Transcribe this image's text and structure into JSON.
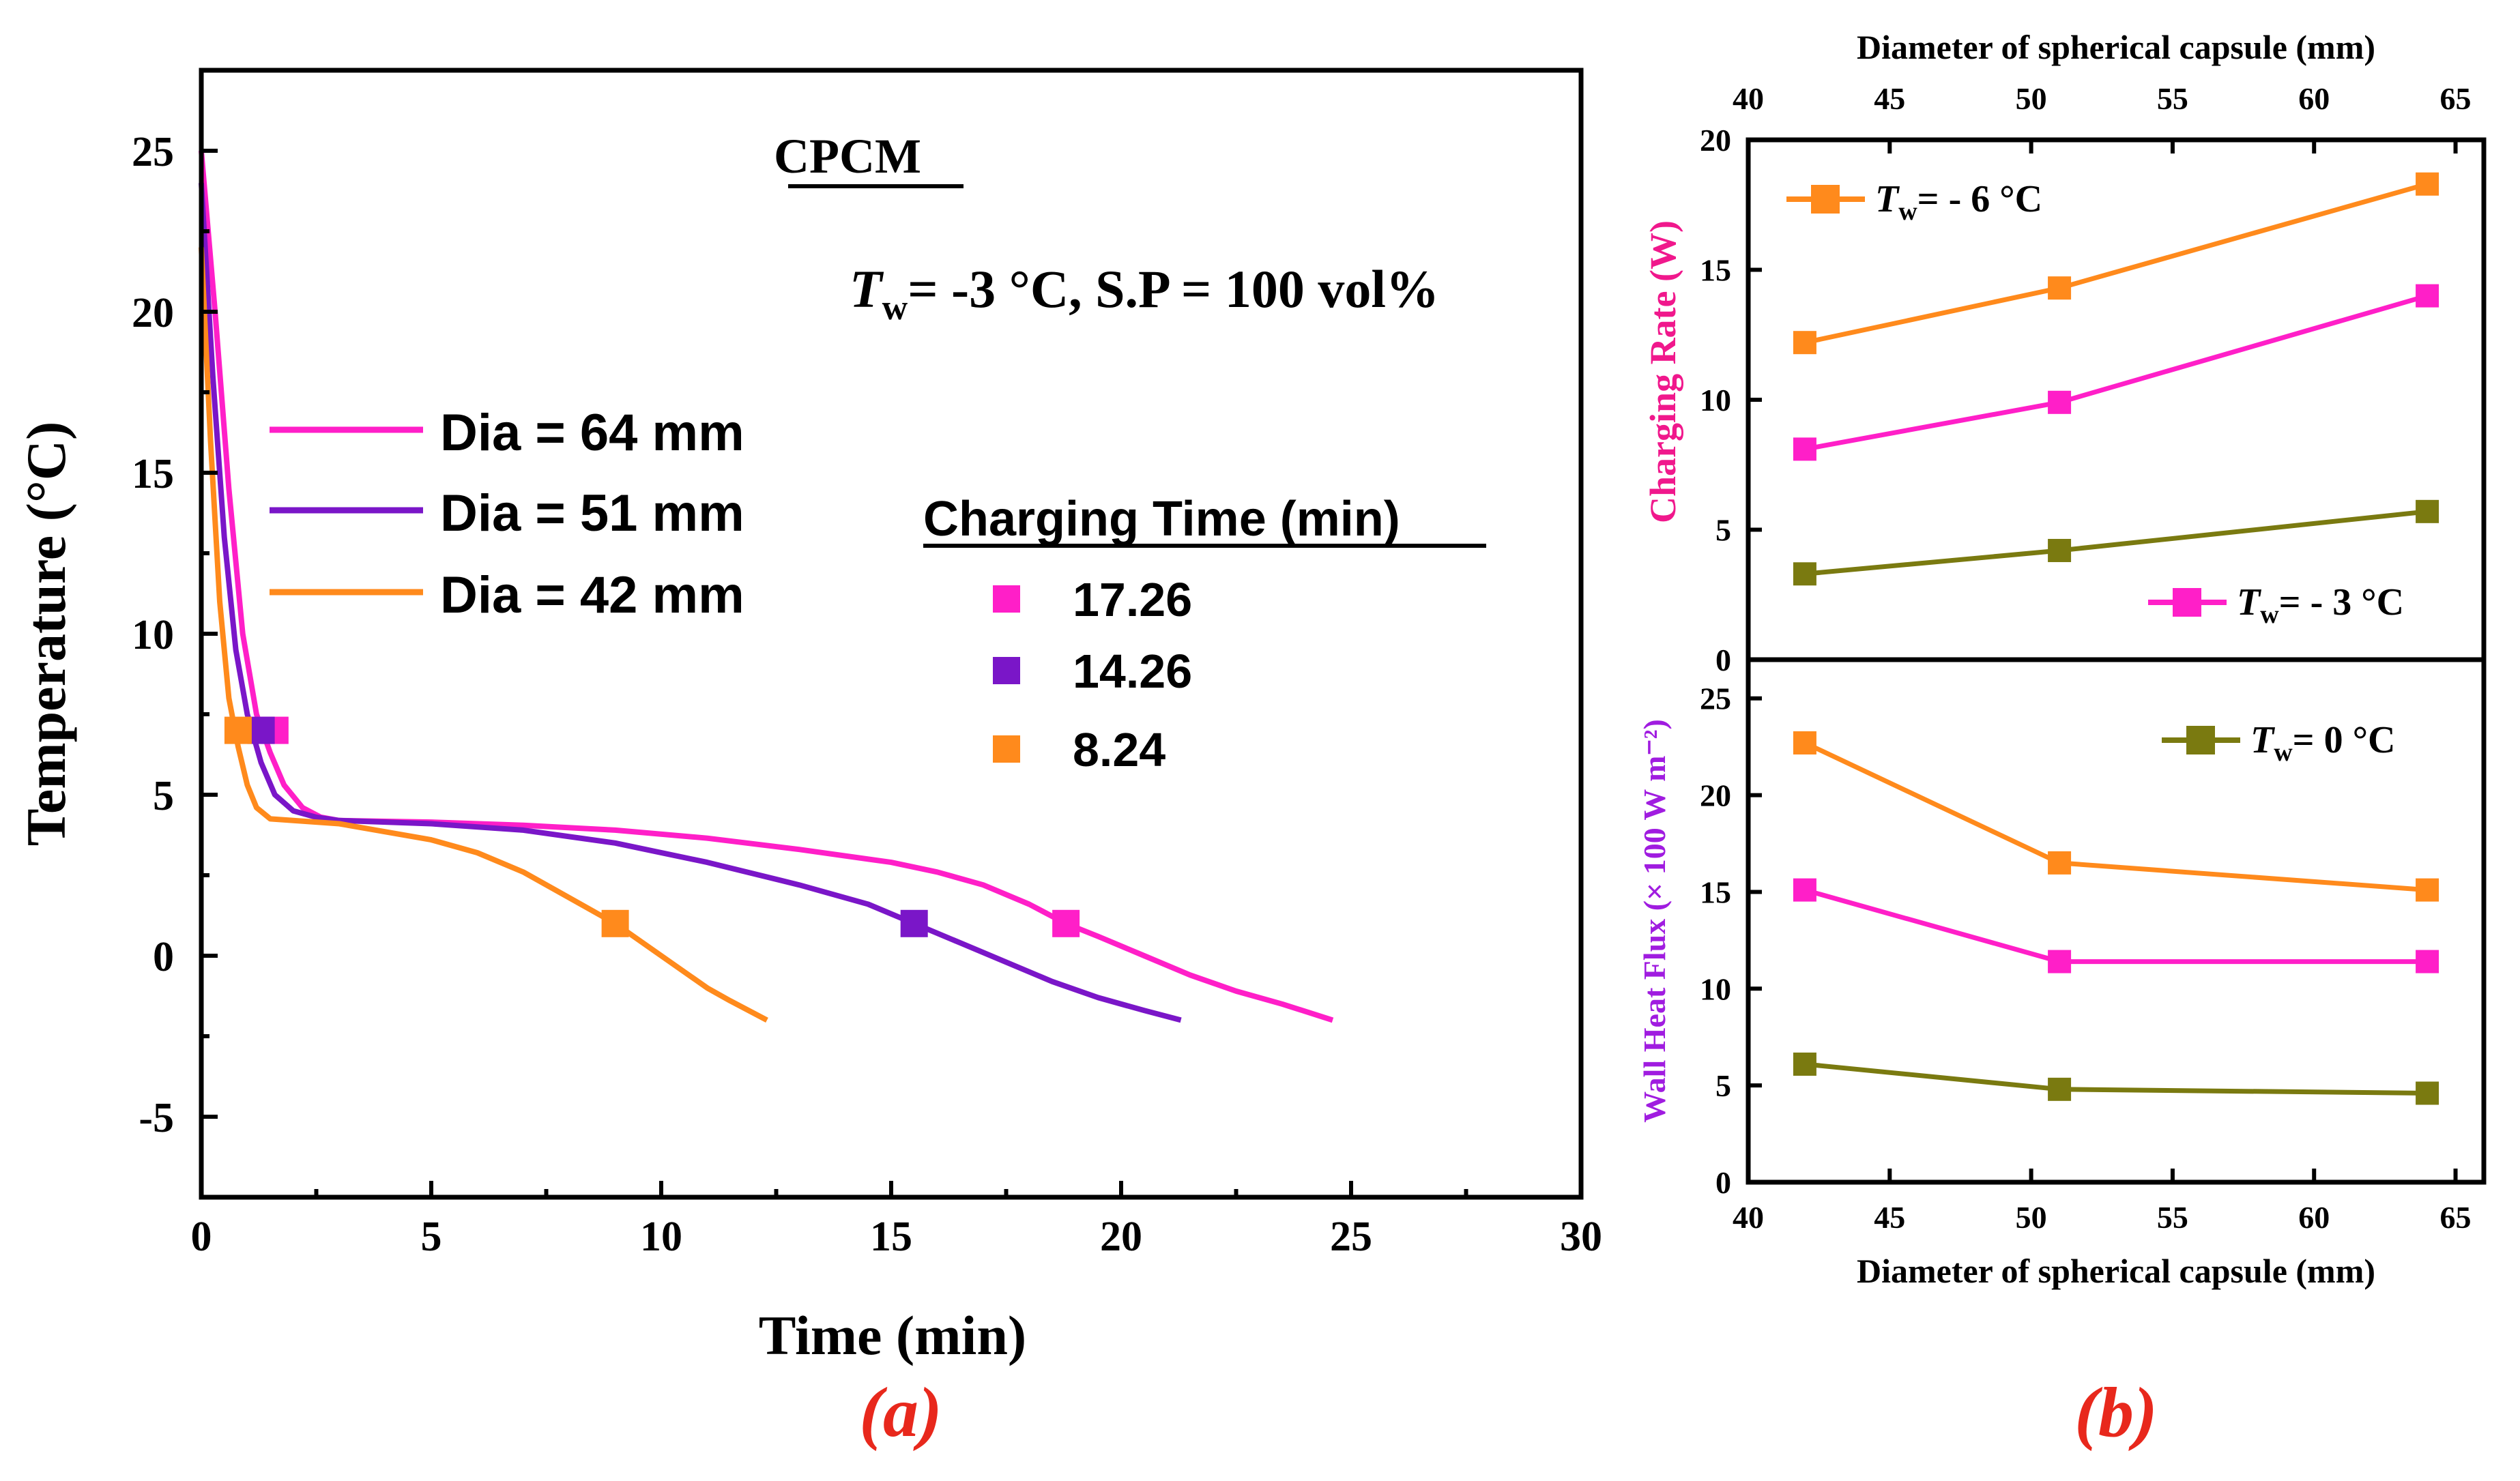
{
  "chart_data": [
    {
      "panel": "(a)",
      "type": "line",
      "title": "CPCM",
      "annotation_prefix": "T",
      "annotation_sub": "w",
      "annotation_text": "= -3 °C, S.P = 100 vol%",
      "xlabel": "Time (min)",
      "ylabel": "Temperature (°C)",
      "xlim": [
        0,
        30
      ],
      "ylim": [
        -7.5,
        27.5
      ],
      "xticks": [
        "0",
        "5",
        "10",
        "15",
        "20",
        "25",
        "30"
      ],
      "yticks": [
        "-5",
        "0",
        "5",
        "10",
        "15",
        "20",
        "25"
      ],
      "series": [
        {
          "name": "Dia = 64 mm",
          "color": "#ff1fc8",
          "x": [
            0,
            0.3,
            0.6,
            0.9,
            1.2,
            1.5,
            1.8,
            2.2,
            2.6,
            3,
            5,
            7,
            9,
            11,
            13,
            15,
            16,
            17,
            18,
            18.8,
            19.5,
            20.5,
            21.5,
            22.5,
            23.5,
            24.6
          ],
          "y": [
            25,
            20,
            14.5,
            10,
            7.5,
            6.3,
            5.3,
            4.6,
            4.3,
            4.2,
            4.15,
            4.05,
            3.9,
            3.65,
            3.3,
            2.9,
            2.6,
            2.2,
            1.6,
            1.0,
            0.6,
            0.0,
            -0.6,
            -1.1,
            -1.5,
            -2
          ]
        },
        {
          "name": "Dia = 51 mm",
          "color": "#7a16c8",
          "x": [
            0,
            0.25,
            0.5,
            0.75,
            1.0,
            1.3,
            1.6,
            2.0,
            2.5,
            3,
            5,
            7,
            9,
            11,
            13,
            14.5,
            15.5,
            16.5,
            17.5,
            18.5,
            19.5,
            20.5,
            21.3
          ],
          "y": [
            24,
            18,
            13,
            9.5,
            7.5,
            6.0,
            5.0,
            4.5,
            4.3,
            4.2,
            4.1,
            3.9,
            3.5,
            2.9,
            2.2,
            1.6,
            1.0,
            0.4,
            -0.2,
            -0.8,
            -1.3,
            -1.7,
            -2
          ]
        },
        {
          "name": "Dia = 42 mm",
          "color": "#ff8a1c",
          "x": [
            0,
            0.2,
            0.4,
            0.6,
            0.8,
            1.0,
            1.2,
            1.5,
            2,
            3,
            5,
            6,
            7,
            8,
            9,
            9.5,
            10,
            10.5,
            11,
            11.5,
            12.3
          ],
          "y": [
            22,
            16,
            11,
            8,
            6.5,
            5.3,
            4.6,
            4.25,
            4.2,
            4.1,
            3.6,
            3.2,
            2.6,
            1.8,
            1.0,
            0.5,
            0.0,
            -0.5,
            -1.0,
            -1.4,
            -2
          ]
        }
      ],
      "markers": [
        {
          "series": "Dia = 64 mm",
          "points": [
            [
              1.6,
              7
            ],
            [
              18.8,
              1
            ]
          ]
        },
        {
          "series": "Dia = 51 mm",
          "points": [
            [
              1.3,
              7
            ],
            [
              15.5,
              1
            ]
          ]
        },
        {
          "series": "Dia = 42 mm",
          "points": [
            [
              0.8,
              7
            ],
            [
              9.0,
              1
            ]
          ]
        }
      ],
      "charging_time_title": "Charging Time (min)",
      "charging_times": [
        {
          "label": "17.26",
          "color": "#ff1fc8"
        },
        {
          "label": "14.26",
          "color": "#7a16c8"
        },
        {
          "label": "8.24",
          "color": "#ff8a1c"
        }
      ]
    },
    {
      "panel": "(b)",
      "type": "line",
      "xlabel_top": "Diameter of spherical capsule (mm)",
      "xlabel_bottom": "Diameter of spherical capsule (mm)",
      "xlim": [
        40,
        66
      ],
      "xticks": [
        "40",
        "45",
        "50",
        "55",
        "60",
        "65"
      ],
      "x": [
        42,
        51,
        64
      ],
      "upper": {
        "ylabel": "Charging Rate (W)",
        "ylabel_color": "#f0188c",
        "ylim": [
          0,
          20
        ],
        "yticks": [
          "0",
          "5",
          "10",
          "15",
          "20"
        ],
        "series": [
          {
            "name": "Tw = -6 °C",
            "color": "#ff8a1c",
            "values": [
              12.2,
              14.3,
              18.3
            ]
          },
          {
            "name": "Tw = -3 °C",
            "color": "#ff1fc8",
            "values": [
              8.1,
              9.9,
              14.0
            ]
          },
          {
            "name": "Tw = 0 °C",
            "color": "#7a7a10",
            "values": [
              3.3,
              4.2,
              5.7
            ]
          }
        ]
      },
      "lower": {
        "ylabel": "Wall Heat Flux (× 100 W m⁻²)",
        "ylabel_color": "#a01ce0",
        "ylim": [
          0,
          27
        ],
        "yticks": [
          "0",
          "5",
          "10",
          "15",
          "20",
          "25"
        ],
        "series": [
          {
            "name": "Tw = -6 °C",
            "color": "#ff8a1c",
            "values": [
              22.7,
              16.5,
              15.1
            ]
          },
          {
            "name": "Tw = -3 °C",
            "color": "#ff1fc8",
            "values": [
              15.1,
              11.4,
              11.4
            ]
          },
          {
            "name": "Tw = 0 °C",
            "color": "#7a7a10",
            "values": [
              6.1,
              4.8,
              4.6
            ]
          }
        ]
      },
      "legend": [
        {
          "prefix": "T",
          "sub": "w",
          "text": "= - 6 °C",
          "color": "#ff8a1c"
        },
        {
          "prefix": "T",
          "sub": "w",
          "text": "= - 3 °C",
          "color": "#ff1fc8"
        },
        {
          "prefix": "T",
          "sub": "w",
          "text": "= 0 °C",
          "color": "#7a7a10"
        }
      ]
    }
  ]
}
